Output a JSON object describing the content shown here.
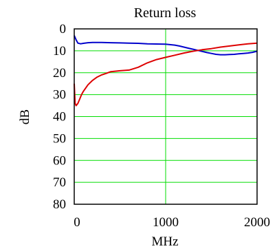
{
  "chart_data": {
    "type": "line",
    "title": "Return loss",
    "xlabel": "MHz",
    "ylabel": "dB",
    "xlim": [
      0,
      2000
    ],
    "ylim": [
      80,
      0
    ],
    "y_inverted": true,
    "grid": true,
    "grid_color": "#00dd00",
    "x_ticks": [
      {
        "value": 0,
        "label": "0"
      },
      {
        "value": 1000,
        "label": "1000"
      },
      {
        "value": 2000,
        "label": "2000"
      }
    ],
    "y_ticks": [
      {
        "value": 0,
        "label": "0"
      },
      {
        "value": 10,
        "label": "10"
      },
      {
        "value": 20,
        "label": "20"
      },
      {
        "value": 30,
        "label": "30"
      },
      {
        "value": 40,
        "label": "40"
      },
      {
        "value": 50,
        "label": "50"
      },
      {
        "value": 60,
        "label": "60"
      },
      {
        "value": 70,
        "label": "70"
      },
      {
        "value": 80,
        "label": "80"
      }
    ],
    "series": [
      {
        "color": "#0000cc",
        "x": [
          0,
          20,
          40,
          70,
          100,
          150,
          200,
          300,
          400,
          500,
          600,
          700,
          800,
          900,
          1000,
          1100,
          1150,
          1200,
          1250,
          1300,
          1350,
          1400,
          1450,
          1500,
          1550,
          1600,
          1650,
          1700,
          1750,
          1800,
          1850,
          1900,
          1950,
          2000
        ],
        "values": [
          3,
          5,
          6.5,
          6.8,
          6.6,
          6.3,
          6.2,
          6.2,
          6.3,
          6.4,
          6.5,
          6.6,
          6.8,
          6.9,
          7.0,
          7.4,
          7.8,
          8.3,
          8.8,
          9.3,
          9.8,
          10.3,
          10.8,
          11.2,
          11.6,
          11.8,
          11.8,
          11.7,
          11.6,
          11.4,
          11.2,
          11.0,
          10.7,
          10.2
        ]
      },
      {
        "color": "#dd0000",
        "x": [
          0,
          10,
          20,
          40,
          60,
          80,
          100,
          150,
          200,
          250,
          300,
          350,
          400,
          500,
          600,
          700,
          800,
          900,
          1000,
          1100,
          1200,
          1300,
          1400,
          1500,
          1600,
          1700,
          1800,
          1900,
          2000
        ],
        "values": [
          25,
          34,
          35,
          34,
          32,
          30,
          28.5,
          25.5,
          23.5,
          22,
          21,
          20.3,
          19.5,
          19.1,
          18.8,
          17.5,
          15.5,
          14,
          13,
          12,
          11,
          10.2,
          9.5,
          9,
          8.3,
          7.8,
          7.3,
          6.8,
          6.5
        ]
      }
    ]
  }
}
